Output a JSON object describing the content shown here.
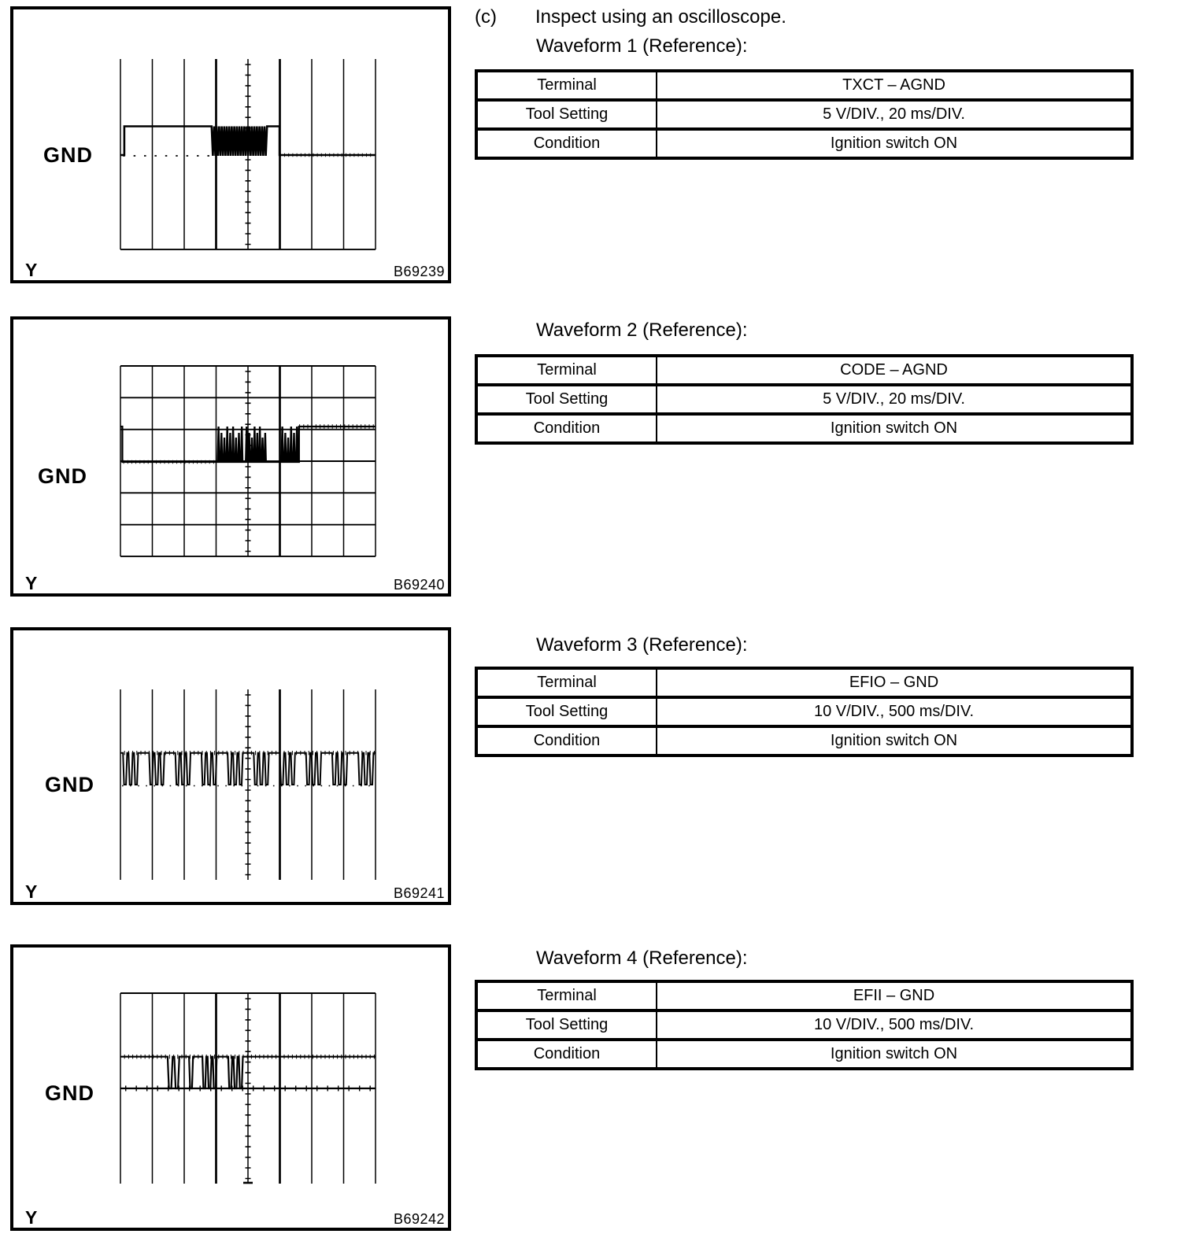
{
  "page": {
    "section_marker": "(c)",
    "section_title": "Inspect using an oscilloscope."
  },
  "waveforms": [
    {
      "heading": "Waveform 1 (Reference):",
      "figure_id": "B69239",
      "scope": {
        "gnd_label": "GND",
        "y_label": "Y"
      },
      "table": {
        "rows": [
          {
            "label": "Terminal",
            "value": "TXCT – AGND"
          },
          {
            "label": "Tool Setting",
            "value": "5 V/DIV., 20 ms/DIV."
          },
          {
            "label": "Condition",
            "value": "Ignition switch ON"
          }
        ]
      }
    },
    {
      "heading": "Waveform 2 (Reference):",
      "figure_id": "B69240",
      "scope": {
        "gnd_label": "GND",
        "y_label": "Y"
      },
      "table": {
        "rows": [
          {
            "label": "Terminal",
            "value": "CODE – AGND"
          },
          {
            "label": "Tool Setting",
            "value": "5 V/DIV., 20 ms/DIV."
          },
          {
            "label": "Condition",
            "value": "Ignition switch ON"
          }
        ]
      }
    },
    {
      "heading": "Waveform 3 (Reference):",
      "figure_id": "B69241",
      "scope": {
        "gnd_label": "GND",
        "y_label": "Y"
      },
      "table": {
        "rows": [
          {
            "label": "Terminal",
            "value": "EFIO – GND"
          },
          {
            "label": "Tool Setting",
            "value": "10 V/DIV., 500 ms/DIV."
          },
          {
            "label": "Condition",
            "value": "Ignition switch ON"
          }
        ]
      }
    },
    {
      "heading": "Waveform 4 (Reference):",
      "figure_id": "B69242",
      "scope": {
        "gnd_label": "GND",
        "y_label": "Y"
      },
      "table": {
        "rows": [
          {
            "label": "Terminal",
            "value": "EFII – GND"
          },
          {
            "label": "Tool Setting",
            "value": "10 V/DIV., 500 ms/DIV."
          },
          {
            "label": "Condition",
            "value": "Ignition switch ON"
          }
        ]
      }
    }
  ],
  "chart_data": [
    {
      "type": "line",
      "title": "Waveform 1 (Reference)",
      "terminal": "TXCT – AGND",
      "xlabel": "time (20 ms/DIV)",
      "ylabel": "voltage (5 V/DIV)",
      "figure_id": "B69239",
      "description": "Serial data line: high plateau, dense high-low burst around screen center, short high, then ground level",
      "grid": {
        "cols": 8,
        "rows": 6
      },
      "h_lines": [
        6
      ],
      "thick_v": [
        3,
        5
      ],
      "gnd_row": 3,
      "high_div": 0.88,
      "trace_width": 2.6,
      "segments": [
        [
          "L",
          0,
          0.12
        ],
        [
          "H",
          0.12,
          2.86
        ],
        [
          "OSC",
          2.86,
          4.62
        ],
        [
          "H",
          4.62,
          4.99
        ],
        [
          "L",
          4.99,
          8
        ]
      ],
      "texture": {
        "gnd_dash": [
          [
            0.08,
            2.8
          ]
        ],
        "low_hatch": [
          [
            5.02,
            7.97
          ]
        ]
      }
    },
    {
      "type": "line",
      "title": "Waveform 2 (Reference)",
      "terminal": "CODE – AGND",
      "xlabel": "time (20 ms/DIV)",
      "ylabel": "voltage (5 V/DIV)",
      "figure_id": "B69240",
      "description": "Ground level with three bursts of upward data pulses near center, then steady high level",
      "grid": {
        "cols": 8,
        "rows": 6
      },
      "h_lines": [
        0,
        1,
        2,
        3,
        4,
        5,
        6
      ],
      "thick_v": [
        5
      ],
      "gnd_row": 3,
      "high_div": 1.09,
      "trace_width": 2.3,
      "segments": [
        [
          "H",
          0,
          0.06
        ],
        [
          "L",
          0.06,
          3.05
        ],
        [
          "PU",
          3.05,
          3.87,
          9
        ],
        [
          "L",
          3.87,
          3.93
        ],
        [
          "PU",
          3.93,
          4.6,
          8
        ],
        [
          "L",
          4.6,
          5.05
        ],
        [
          "PU",
          5.05,
          5.6,
          6
        ],
        [
          "H",
          5.6,
          8
        ]
      ],
      "texture": {
        "low_hatch": [
          [
            0.1,
            3.0
          ]
        ],
        "high_hatch": [
          [
            5.62,
            7.97
          ]
        ]
      }
    },
    {
      "type": "line",
      "title": "Waveform 3 (Reference)",
      "terminal": "EFIO – GND",
      "xlabel": "time (500 ms/DIV)",
      "ylabel": "voltage (10 V/DIV)",
      "figure_id": "B69241",
      "description": "Steady high level with repeated groups of three downward pulses to ground, one group roughly every division",
      "grid": {
        "cols": 8,
        "rows": 6
      },
      "h_lines": [],
      "thick_v": [
        5
      ],
      "gnd_row": 3,
      "high_div": 1.0,
      "trace_width": 2.0,
      "segments": [
        [
          "H",
          0,
          0.08
        ],
        [
          "PD",
          0.08,
          0.6,
          3
        ],
        [
          "H",
          0.6,
          0.9
        ],
        [
          "PD",
          0.9,
          1.42,
          3
        ],
        [
          "H",
          1.42,
          1.72
        ],
        [
          "PD",
          1.72,
          2.24,
          3
        ],
        [
          "H",
          2.24,
          2.54
        ],
        [
          "PD",
          2.54,
          3.06,
          3
        ],
        [
          "H",
          3.06,
          3.36
        ],
        [
          "PD",
          3.36,
          3.88,
          3
        ],
        [
          "H",
          3.88,
          4.18
        ],
        [
          "PD",
          4.18,
          4.7,
          3
        ],
        [
          "H",
          4.7,
          5.0
        ],
        [
          "PD",
          5.0,
          5.52,
          3
        ],
        [
          "H",
          5.52,
          5.82
        ],
        [
          "PD",
          5.82,
          6.34,
          3
        ],
        [
          "H",
          6.34,
          6.64
        ],
        [
          "PD",
          6.64,
          7.16,
          3
        ],
        [
          "H",
          7.16,
          7.46
        ],
        [
          "PD",
          7.46,
          7.98,
          3
        ],
        [
          "H",
          7.98,
          8
        ]
      ],
      "texture": {
        "high_hatch": [
          [
            0,
            8
          ]
        ],
        "base_dots": [
          [
            0.05,
            7.95
          ]
        ]
      }
    },
    {
      "type": "line",
      "title": "Waveform 4 (Reference)",
      "terminal": "EFII – GND",
      "xlabel": "time (500 ms/DIV)",
      "ylabel": "voltage (10 V/DIV)",
      "figure_id": "B69242",
      "description": "Steady high level with a cluster of downward pulses to ground left of screen center",
      "grid": {
        "cols": 8,
        "rows": 6
      },
      "h_lines": [
        0
      ],
      "thick_v": [
        3,
        5
      ],
      "baseline_grid": true,
      "base_ticks": true,
      "center_cap": true,
      "gnd_row": 3,
      "high_div": 1.0,
      "trace_width": 2.2,
      "segments": [
        [
          "H",
          0,
          1.48
        ],
        [
          "PD",
          1.48,
          1.9,
          2
        ],
        [
          "H",
          1.9,
          2.15
        ],
        [
          "PD",
          2.15,
          2.32,
          1
        ],
        [
          "H",
          2.32,
          2.57
        ],
        [
          "PD",
          2.57,
          3.06,
          3
        ],
        [
          "H",
          3.06,
          3.38
        ],
        [
          "PD",
          3.38,
          3.88,
          3
        ],
        [
          "H",
          3.88,
          8
        ]
      ],
      "texture": {
        "high_hatch": [
          [
            0,
            8
          ]
        ]
      }
    }
  ]
}
